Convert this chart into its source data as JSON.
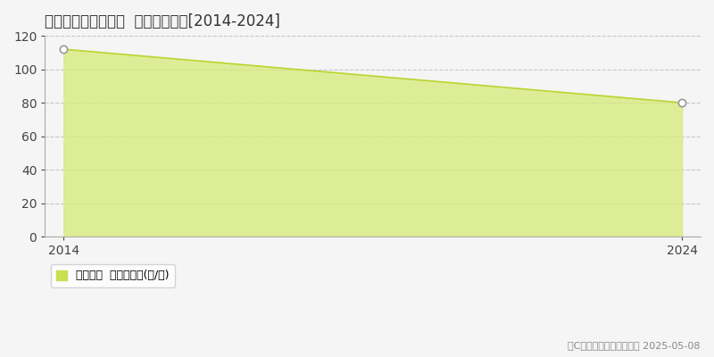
{
  "title": "吾川郡仁淀川町大渡  林地価格推移[2014-2024]",
  "x": [
    2014,
    2024
  ],
  "y": [
    112,
    80
  ],
  "xlim": [
    2014,
    2024
  ],
  "ylim": [
    0,
    120
  ],
  "yticks": [
    0,
    20,
    40,
    60,
    80,
    100,
    120
  ],
  "xticks": [
    2014,
    2024
  ],
  "fill_color": "#d6eb78",
  "fill_alpha": 0.75,
  "line_color": "#bcd435",
  "line_width": 1.2,
  "marker_color": "#ffffff",
  "marker_edge_color": "#999999",
  "marker_edge_width": 1.2,
  "marker_size": 6,
  "grid_color": "#bbbbbb",
  "grid_style": "--",
  "grid_alpha": 0.8,
  "background_color": "#f5f5f5",
  "plot_bg_color": "#f5f5f5",
  "legend_label": "林地価格  平均坪単価(円/坪)",
  "legend_color": "#c8e050",
  "copyright_text": "（C）土地価格ドットコム 2025-05-08",
  "title_fontsize": 12,
  "axis_fontsize": 10,
  "legend_fontsize": 9,
  "copyright_fontsize": 8
}
